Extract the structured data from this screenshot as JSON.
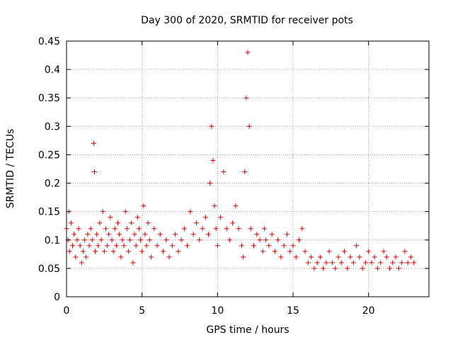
{
  "chart_data": {
    "type": "scatter",
    "title": "Day 300 of 2020, SRMTID for receiver pots",
    "xlabel": "GPS time / hours",
    "ylabel": "SRMTID / TECUs",
    "xlim": [
      0,
      24
    ],
    "ylim": [
      0,
      0.45
    ],
    "xticks": [
      0,
      5,
      10,
      15,
      20
    ],
    "xtick_labels": [
      "0",
      "5",
      "10",
      "15",
      "20"
    ],
    "yticks": [
      0,
      0.05,
      0.1,
      0.15,
      0.2,
      0.25,
      0.3,
      0.35,
      0.4,
      0.45
    ],
    "ytick_labels": [
      "0",
      "0.05",
      "0.1",
      "0.15",
      "0.2",
      "0.25",
      "0.3",
      "0.35",
      "0.4",
      "0.45"
    ],
    "grid": true,
    "marker": "+",
    "colors": {
      "points": "#e00000",
      "grid": "#a0a0a0",
      "axis": "#000000"
    },
    "series": [
      {
        "x": [
          0.0,
          0.1,
          0.15,
          0.2,
          0.3,
          0.4,
          0.5,
          0.6,
          0.7,
          0.8,
          0.9,
          1.0,
          1.1,
          1.2,
          1.3,
          1.4,
          1.5,
          1.6,
          1.7,
          1.8,
          1.85,
          1.9,
          2.0,
          2.1,
          2.2,
          2.3,
          2.4,
          2.5,
          2.6,
          2.7,
          2.8,
          2.9,
          3.0,
          3.1,
          3.2,
          3.3,
          3.4,
          3.5,
          3.6,
          3.7,
          3.8,
          3.9,
          4.0,
          4.1,
          4.2,
          4.3,
          4.4,
          4.5,
          4.6,
          4.7,
          4.8,
          4.9,
          5.0,
          5.1,
          5.2,
          5.3,
          5.4,
          5.5,
          5.6,
          5.8,
          6.0,
          6.2,
          6.4,
          6.6,
          6.8,
          7.0,
          7.2,
          7.4,
          7.6,
          7.8,
          8.0,
          8.2,
          8.4,
          8.6,
          8.8,
          9.0,
          9.2,
          9.4,
          9.5,
          9.6,
          9.7,
          9.8,
          9.9,
          10.0,
          10.2,
          10.4,
          10.6,
          10.8,
          11.0,
          11.2,
          11.4,
          11.6,
          11.7,
          11.8,
          11.9,
          12.0,
          12.1,
          12.2,
          12.4,
          12.6,
          12.8,
          13.0,
          13.1,
          13.2,
          13.4,
          13.6,
          13.8,
          14.0,
          14.2,
          14.4,
          14.6,
          14.8,
          15.0,
          15.2,
          15.4,
          15.6,
          15.8,
          16.0,
          16.2,
          16.4,
          16.6,
          16.8,
          17.0,
          17.2,
          17.4,
          17.6,
          17.8,
          18.0,
          18.2,
          18.4,
          18.6,
          18.8,
          19.0,
          19.2,
          19.4,
          19.6,
          19.8,
          20.0,
          20.2,
          20.4,
          20.6,
          20.8,
          21.0,
          21.2,
          21.4,
          21.6,
          21.8,
          22.0,
          22.2,
          22.4,
          22.6,
          22.8,
          23.0
        ],
        "y": [
          0.12,
          0.1,
          0.15,
          0.08,
          0.13,
          0.09,
          0.11,
          0.07,
          0.1,
          0.12,
          0.09,
          0.06,
          0.08,
          0.1,
          0.07,
          0.11,
          0.09,
          0.12,
          0.1,
          0.27,
          0.22,
          0.08,
          0.11,
          0.09,
          0.13,
          0.1,
          0.15,
          0.08,
          0.12,
          0.09,
          0.11,
          0.14,
          0.1,
          0.08,
          0.12,
          0.09,
          0.13,
          0.11,
          0.07,
          0.1,
          0.09,
          0.15,
          0.12,
          0.08,
          0.1,
          0.13,
          0.06,
          0.11,
          0.09,
          0.14,
          0.12,
          0.1,
          0.08,
          0.16,
          0.11,
          0.09,
          0.13,
          0.1,
          0.07,
          0.12,
          0.09,
          0.11,
          0.08,
          0.1,
          0.07,
          0.09,
          0.11,
          0.08,
          0.1,
          0.12,
          0.09,
          0.15,
          0.11,
          0.13,
          0.1,
          0.12,
          0.14,
          0.11,
          0.2,
          0.3,
          0.24,
          0.16,
          0.12,
          0.09,
          0.14,
          0.22,
          0.12,
          0.1,
          0.13,
          0.16,
          0.12,
          0.09,
          0.07,
          0.22,
          0.35,
          0.43,
          0.3,
          0.12,
          0.09,
          0.11,
          0.1,
          0.08,
          0.12,
          0.1,
          0.09,
          0.11,
          0.08,
          0.1,
          0.07,
          0.09,
          0.11,
          0.08,
          0.09,
          0.07,
          0.1,
          0.12,
          0.08,
          0.06,
          0.07,
          0.05,
          0.06,
          0.07,
          0.05,
          0.06,
          0.08,
          0.06,
          0.05,
          0.07,
          0.06,
          0.08,
          0.05,
          0.07,
          0.06,
          0.09,
          0.07,
          0.05,
          0.06,
          0.08,
          0.06,
          0.07,
          0.05,
          0.06,
          0.08,
          0.07,
          0.05,
          0.06,
          0.07,
          0.05,
          0.06,
          0.08,
          0.06,
          0.07,
          0.06
        ]
      }
    ]
  }
}
